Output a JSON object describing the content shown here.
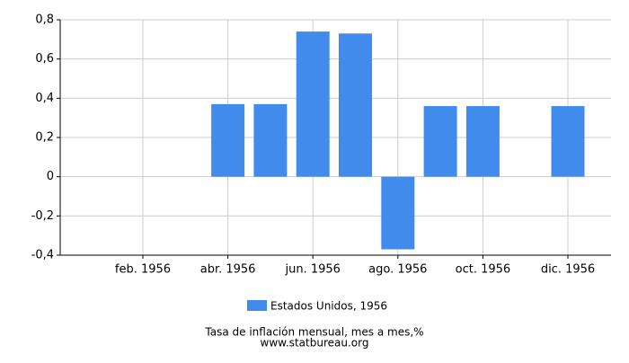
{
  "chart_data": {
    "type": "bar",
    "categories": [
      null,
      "feb. 1956",
      null,
      "abr. 1956",
      null,
      "jun. 1956",
      null,
      "ago. 1956",
      null,
      "oct. 1956",
      null,
      "dic. 1956"
    ],
    "series": [
      {
        "name": "Estados Unidos, 1956",
        "color": "#418bed",
        "values": [
          0,
          0,
          0,
          0.37,
          0.37,
          0.74,
          0.73,
          -0.37,
          0.36,
          0.36,
          0,
          0.36
        ]
      }
    ],
    "ylim": [
      -0.4,
      0.8
    ],
    "yticks": [
      {
        "value": -0.4,
        "label": "-0,4"
      },
      {
        "value": -0.2,
        "label": "-0,2"
      },
      0,
      {
        "value": 0.2,
        "label": "0,2"
      },
      {
        "value": 0.4,
        "label": "0,4"
      },
      {
        "value": 0.6,
        "label": "0,6"
      },
      {
        "value": 0.8,
        "label": "0,8"
      }
    ],
    "grid": true,
    "xlabel": "Tasa de inflación mensual, mes a mes,%",
    "source": "www.statbureau.org"
  }
}
